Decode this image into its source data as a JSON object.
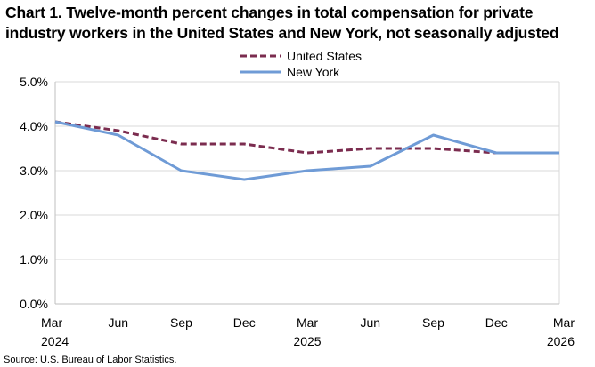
{
  "chart_data": {
    "type": "line",
    "title": "Chart 1. Twelve-month percent changes in total compensation for private industry workers in the United States and New York, not seasonally adjusted",
    "x": [
      "Mar 2024",
      "Jun",
      "Sep",
      "Dec",
      "Mar 2025",
      "Jun",
      "Sep",
      "Dec",
      "Mar 2026"
    ],
    "x_tick_labels": [
      [
        "Mar",
        "2024"
      ],
      [
        "Jun",
        ""
      ],
      [
        "Sep",
        ""
      ],
      [
        "Dec",
        ""
      ],
      [
        "Mar",
        "2025"
      ],
      [
        "Jun",
        ""
      ],
      [
        "Sep",
        ""
      ],
      [
        "Dec",
        ""
      ],
      [
        "Mar",
        "2026"
      ]
    ],
    "series": [
      {
        "name": "United States",
        "color": "#7b2c4f",
        "style": "dashed",
        "values": [
          4.1,
          3.9,
          3.6,
          3.6,
          3.4,
          3.5,
          3.5,
          3.4,
          3.4
        ]
      },
      {
        "name": "New York",
        "color": "#6f9bd6",
        "style": "solid",
        "values": [
          4.1,
          3.8,
          3.0,
          2.8,
          3.0,
          3.1,
          3.8,
          3.4,
          3.4
        ]
      }
    ],
    "y_ticks": [
      "0.0%",
      "1.0%",
      "2.0%",
      "3.0%",
      "4.0%",
      "5.0%"
    ],
    "ylim": [
      0,
      5
    ],
    "grid": true,
    "legend_position": "top-center",
    "source": "Source: U.S. Bureau of Labor Statistics."
  }
}
